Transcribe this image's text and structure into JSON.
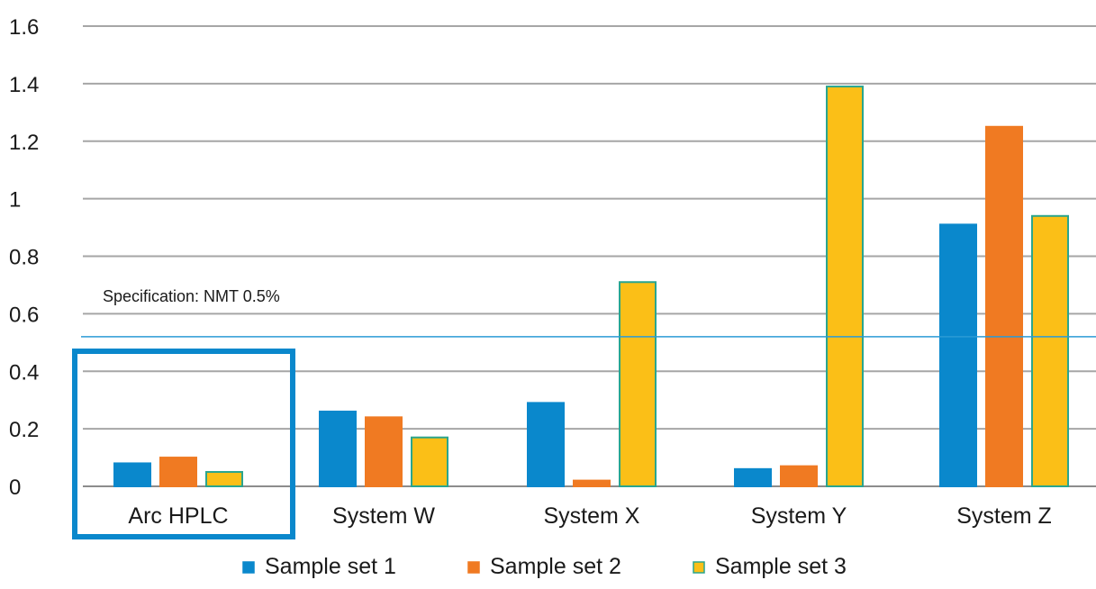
{
  "chart_data": {
    "type": "bar",
    "categories": [
      "Arc HPLC",
      "System W",
      "System X",
      "System Y",
      "System Z"
    ],
    "series": [
      {
        "name": "Sample set 1",
        "values": [
          0.08,
          0.26,
          0.29,
          0.06,
          0.91
        ],
        "color": "#0a88cc",
        "outline": "#0a88cc"
      },
      {
        "name": "Sample set 2",
        "values": [
          0.1,
          0.24,
          0.02,
          0.07,
          1.25
        ],
        "color": "#f07a22",
        "outline": "#f07a22"
      },
      {
        "name": "Sample set 3",
        "values": [
          0.05,
          0.17,
          0.71,
          1.39,
          0.94
        ],
        "color": "#fbbf17",
        "outline": "#2aa58e"
      }
    ],
    "y_ticks": [
      "0",
      "0.2",
      "0.4",
      "0.6",
      "0.8",
      "1",
      "1.2",
      "1.4",
      "1.6"
    ],
    "ylim": [
      0,
      1.6
    ],
    "grid": true,
    "legend_position": "bottom",
    "highlighted_category": "Arc HPLC",
    "highlight_color": "#0a88cc",
    "reference_line": {
      "label": "Specification: NMT 0.5%",
      "value": 0.52,
      "color": "#2b9bd6"
    }
  }
}
